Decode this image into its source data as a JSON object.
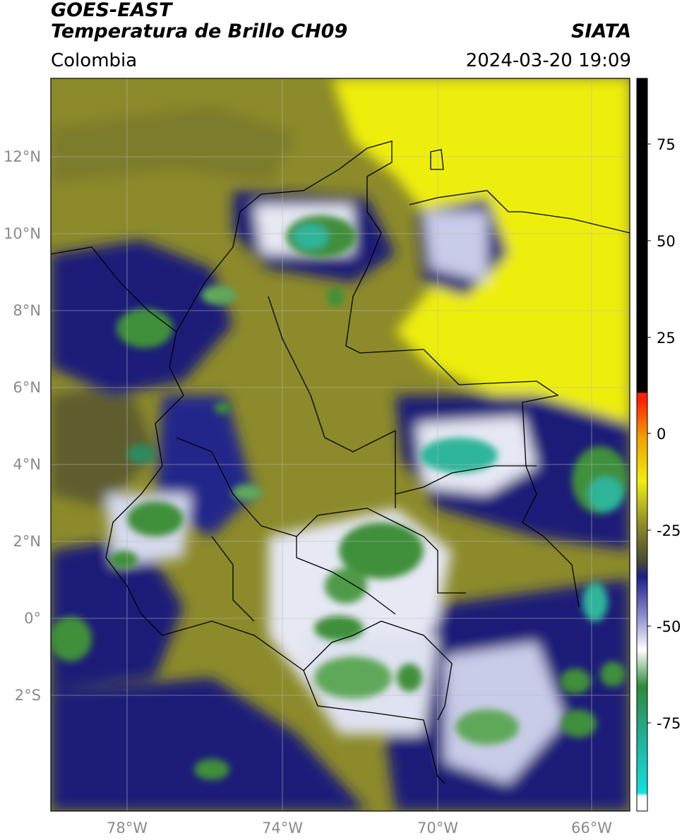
{
  "header": {
    "satellite": "GOES-EAST",
    "product": "Temperatura de Brillo CH09",
    "brand": "SIATA",
    "region": "Colombia",
    "timestamp": "2024-03-20 19:09"
  },
  "map": {
    "lon_range": [
      -80,
      -65
    ],
    "lat_range": [
      -5,
      14
    ],
    "lat_ticks": [
      {
        "value": 12,
        "label": "12°N"
      },
      {
        "value": 10,
        "label": "10°N"
      },
      {
        "value": 8,
        "label": "8°N"
      },
      {
        "value": 6,
        "label": "6°N"
      },
      {
        "value": 4,
        "label": "4°N"
      },
      {
        "value": 2,
        "label": "2°N"
      },
      {
        "value": 0,
        "label": "0°"
      },
      {
        "value": -2,
        "label": "2°S"
      }
    ],
    "lon_ticks": [
      {
        "value": -78,
        "label": "78°W"
      },
      {
        "value": -74,
        "label": "74°W"
      },
      {
        "value": -70,
        "label": "70°W"
      },
      {
        "value": -66,
        "label": "66°W"
      }
    ],
    "colors": {
      "warm": "#eeee10",
      "olive": "#8c8a2a",
      "dark_olive": "#55532e",
      "navy": "#1a1f78",
      "blue": "#3035a8",
      "light": "#e6e8f4",
      "white": "#ffffff",
      "green": "#3f8f3a",
      "teal": "#2fb59a"
    }
  },
  "colorbar": {
    "range": [
      -100,
      90
    ],
    "ticks": [
      {
        "value": 75,
        "label": "75"
      },
      {
        "value": 50,
        "label": "50"
      },
      {
        "value": 25,
        "label": "25"
      },
      {
        "value": 0,
        "label": "0"
      },
      {
        "value": -25,
        "label": "-25"
      },
      {
        "value": -50,
        "label": "-50"
      },
      {
        "value": -75,
        "label": "-75"
      }
    ]
  }
}
